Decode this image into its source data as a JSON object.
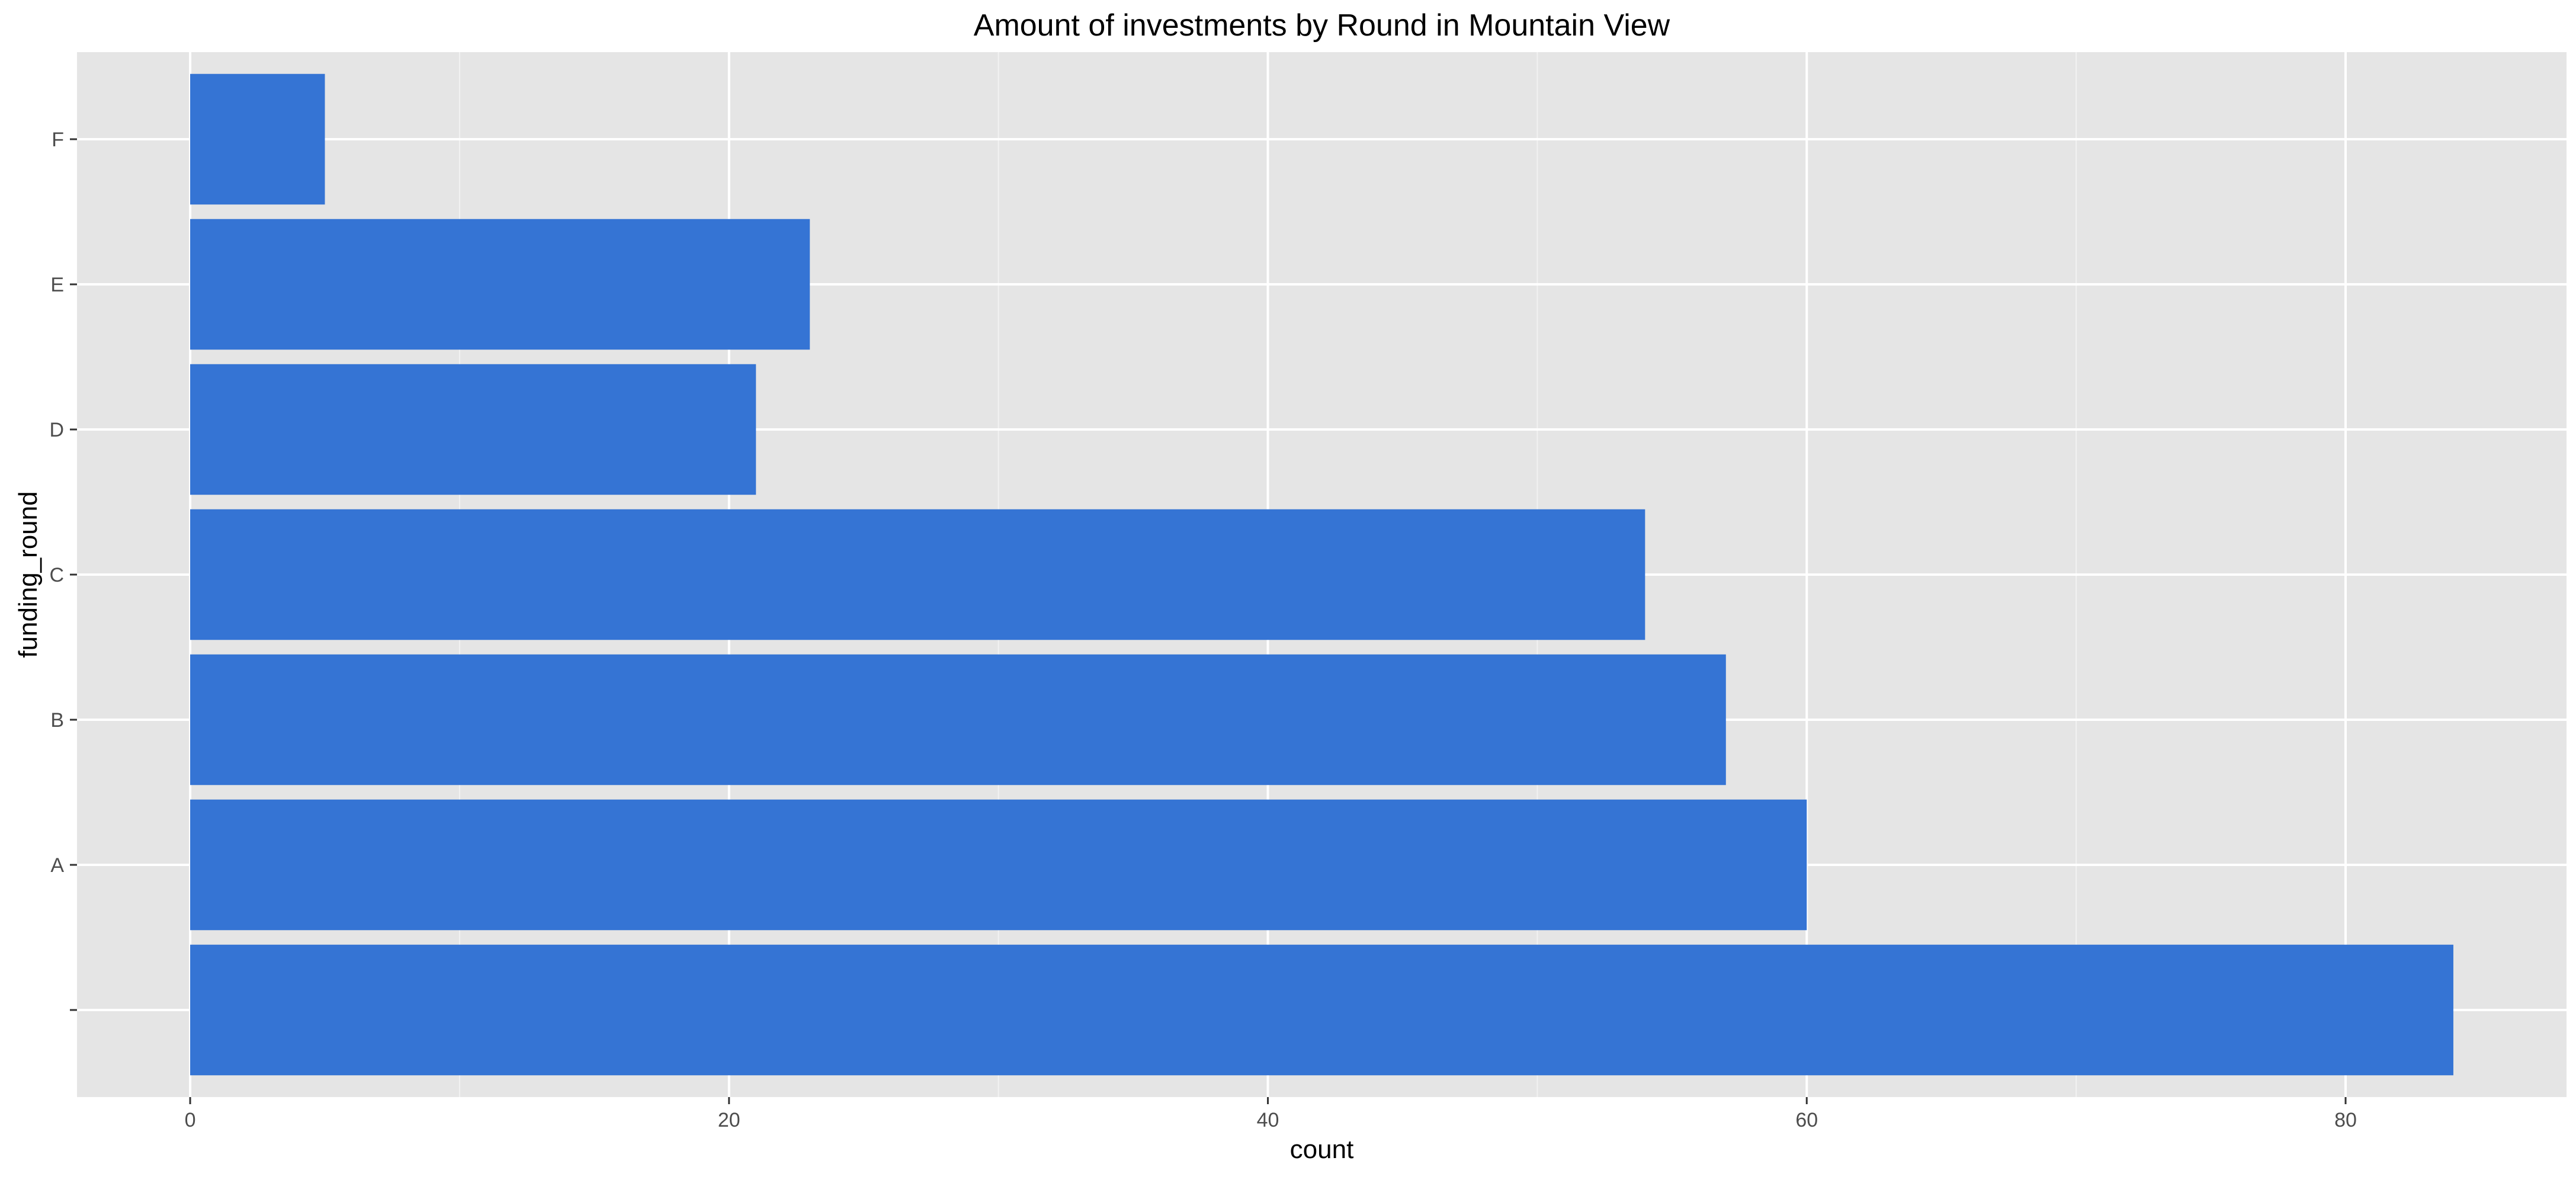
{
  "chart_data": {
    "type": "bar",
    "orientation": "horizontal",
    "title": "Amount of investments by Round in Mountain View",
    "xlabel": "count",
    "ylabel": "funding_round",
    "categories": [
      "",
      "A",
      "B",
      "C",
      "D",
      "E",
      "F"
    ],
    "values": [
      84,
      60,
      57,
      54,
      21,
      23,
      5
    ],
    "xlim": [
      -4.2,
      88.2
    ],
    "x_ticks": [
      0,
      20,
      40,
      60,
      80
    ],
    "grid": true,
    "legend": "none",
    "colors": {
      "bar": "#3574D4",
      "panel_background": "#E5E5E5",
      "grid_major": "#FFFFFF",
      "grid_minor": "#F2F2F2",
      "tick_mark": "#333333"
    }
  }
}
